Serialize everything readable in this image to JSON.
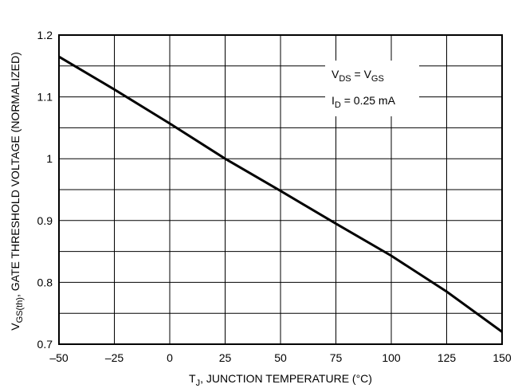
{
  "chart_data": {
    "type": "line",
    "title": "",
    "xlabel": {
      "main": "T",
      "sub": "J",
      "rest": ", JUNCTION TEMPERATURE (°C)"
    },
    "ylabel": {
      "main": "V",
      "sub": "GS(th)",
      "rest": ", GATE THRESHOLD VOLTAGE (NORMALIZED)"
    },
    "xlim": [
      -50,
      150
    ],
    "ylim": [
      0.7,
      1.2
    ],
    "x_ticks": [
      "–50",
      "–25",
      "0",
      "25",
      "50",
      "75",
      "100",
      "125",
      "150"
    ],
    "x_tick_values": [
      -50,
      -25,
      0,
      25,
      50,
      75,
      100,
      125,
      150
    ],
    "y_ticks": [
      "1.2",
      "1.1",
      "1",
      "0.9",
      "0.8",
      "0.7"
    ],
    "y_tick_values": [
      1.2,
      1.1,
      1.0,
      0.9,
      0.8,
      0.7
    ],
    "grid": true,
    "series": [
      {
        "x": [
          -50,
          -25,
          0,
          25,
          50,
          75,
          100,
          125,
          150
        ],
        "y": [
          1.165,
          1.112,
          1.057,
          1.0,
          0.948,
          0.895,
          0.843,
          0.785,
          0.72
        ]
      }
    ],
    "annotation": {
      "line1": {
        "a": "V",
        "a_sub": "DS",
        "eq": " = V",
        "b_sub": "GS"
      },
      "line2": {
        "a": "I",
        "a_sub": "D",
        "rest": " = 0.25 mA"
      }
    }
  }
}
